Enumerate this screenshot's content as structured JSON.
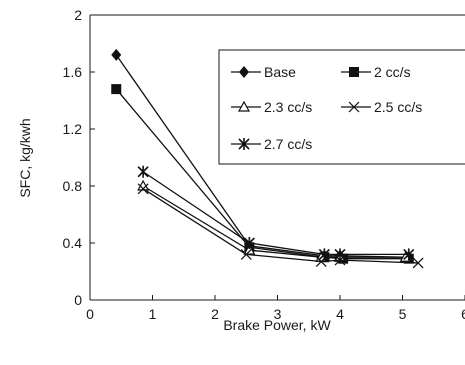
{
  "chart_data": {
    "type": "line",
    "xlabel": "Brake Power, kW",
    "ylabel": "SFC, kg/kwh",
    "xlim": [
      0,
      6
    ],
    "ylim": [
      0,
      2
    ],
    "xticks": [
      0,
      1,
      2,
      3,
      4,
      5,
      6
    ],
    "yticks": [
      0,
      0.4,
      0.8,
      1.2,
      1.6,
      2
    ],
    "xtick_labels": [
      "0",
      "1",
      "2",
      "3",
      "4",
      "5",
      "6"
    ],
    "ytick_labels": [
      "0",
      "0.4",
      "0.8",
      "1.2",
      "1.6",
      "2"
    ],
    "grid": false,
    "legend_position": "top-right",
    "series": [
      {
        "name": "Base",
        "marker": "diamond",
        "color": "#111111",
        "x": [
          0.42,
          2.55,
          3.75,
          4.0,
          5.1
        ],
        "y": [
          1.72,
          0.38,
          0.31,
          0.31,
          0.3
        ]
      },
      {
        "name": "2 cc/s",
        "marker": "square",
        "color": "#111111",
        "x": [
          0.42,
          2.55,
          3.75,
          4.05,
          5.1
        ],
        "y": [
          1.48,
          0.37,
          0.3,
          0.29,
          0.29
        ]
      },
      {
        "name": "2.3 cc/s",
        "marker": "triangle",
        "color": "#111111",
        "x": [
          0.85,
          2.55,
          3.7,
          4.0,
          5.05
        ],
        "y": [
          0.8,
          0.35,
          0.3,
          0.3,
          0.3
        ]
      },
      {
        "name": "2.5 cc/s",
        "marker": "x",
        "color": "#111111",
        "x": [
          0.85,
          2.5,
          3.7,
          4.0,
          5.25
        ],
        "y": [
          0.78,
          0.32,
          0.27,
          0.28,
          0.26
        ]
      },
      {
        "name": "2.7 cc/s",
        "marker": "asterisk",
        "color": "#111111",
        "x": [
          0.85,
          2.55,
          3.75,
          4.0,
          5.1
        ],
        "y": [
          0.9,
          0.4,
          0.32,
          0.32,
          0.32
        ]
      }
    ]
  }
}
